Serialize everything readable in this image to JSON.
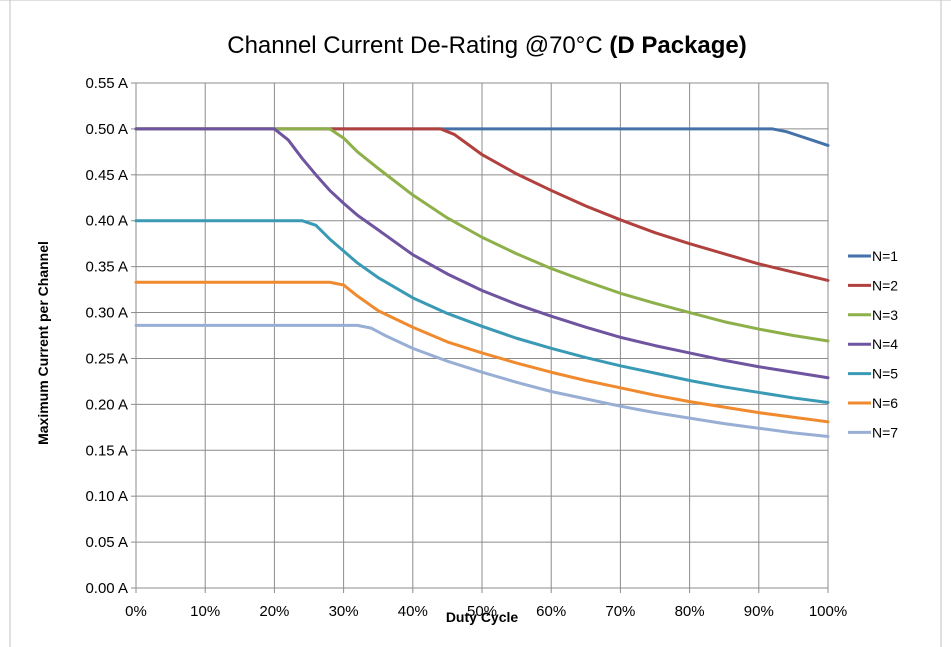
{
  "chart_data": {
    "type": "line",
    "title": "Channel Current De-Rating @70°C",
    "title_bold_suffix": "(D Package)",
    "xlabel": "Duty Cycle",
    "ylabel": "Maximum Current per Channel",
    "xlim": [
      0,
      100
    ],
    "ylim": [
      0,
      0.55
    ],
    "x_ticks": [
      0,
      10,
      20,
      30,
      40,
      50,
      60,
      70,
      80,
      90,
      100
    ],
    "x_tick_labels": [
      "0%",
      "10%",
      "20%",
      "30%",
      "40%",
      "50%",
      "60%",
      "70%",
      "80%",
      "90%",
      "100%"
    ],
    "y_ticks": [
      0,
      0.05,
      0.1,
      0.15,
      0.2,
      0.25,
      0.3,
      0.35,
      0.4,
      0.45,
      0.5,
      0.55
    ],
    "y_tick_labels": [
      "0.00 A",
      "0.05 A",
      "0.10 A",
      "0.15 A",
      "0.20 A",
      "0.25 A",
      "0.30 A",
      "0.35 A",
      "0.40 A",
      "0.45 A",
      "0.50 A",
      "0.55 A"
    ],
    "grid": true,
    "legend_position": "right",
    "series": [
      {
        "name": "N=1",
        "color": "#4472A8",
        "points": [
          [
            0,
            0.5
          ],
          [
            92,
            0.5
          ],
          [
            94,
            0.497
          ],
          [
            96,
            0.492
          ],
          [
            98,
            0.487
          ],
          [
            100,
            0.482
          ]
        ]
      },
      {
        "name": "N=2",
        "color": "#B0413E",
        "points": [
          [
            0,
            0.5
          ],
          [
            44,
            0.5
          ],
          [
            46,
            0.494
          ],
          [
            48,
            0.483
          ],
          [
            50,
            0.472
          ],
          [
            55,
            0.451
          ],
          [
            60,
            0.433
          ],
          [
            65,
            0.416
          ],
          [
            70,
            0.401
          ],
          [
            75,
            0.387
          ],
          [
            80,
            0.375
          ],
          [
            85,
            0.364
          ],
          [
            90,
            0.353
          ],
          [
            95,
            0.344
          ],
          [
            100,
            0.335
          ]
        ]
      },
      {
        "name": "N=3",
        "color": "#8DB04A",
        "points": [
          [
            0,
            0.5
          ],
          [
            28,
            0.5
          ],
          [
            30,
            0.49
          ],
          [
            32,
            0.475
          ],
          [
            35,
            0.457
          ],
          [
            40,
            0.428
          ],
          [
            45,
            0.403
          ],
          [
            50,
            0.382
          ],
          [
            55,
            0.364
          ],
          [
            60,
            0.348
          ],
          [
            65,
            0.334
          ],
          [
            70,
            0.321
          ],
          [
            75,
            0.31
          ],
          [
            80,
            0.3
          ],
          [
            85,
            0.29
          ],
          [
            90,
            0.282
          ],
          [
            95,
            0.275
          ],
          [
            100,
            0.269
          ]
        ]
      },
      {
        "name": "N=4",
        "color": "#6F54A0",
        "points": [
          [
            0,
            0.5
          ],
          [
            20,
            0.5
          ],
          [
            22,
            0.488
          ],
          [
            24,
            0.468
          ],
          [
            26,
            0.45
          ],
          [
            28,
            0.433
          ],
          [
            30,
            0.419
          ],
          [
            32,
            0.406
          ],
          [
            35,
            0.39
          ],
          [
            40,
            0.363
          ],
          [
            45,
            0.342
          ],
          [
            50,
            0.324
          ],
          [
            55,
            0.309
          ],
          [
            60,
            0.296
          ],
          [
            65,
            0.284
          ],
          [
            70,
            0.273
          ],
          [
            75,
            0.264
          ],
          [
            80,
            0.256
          ],
          [
            85,
            0.248
          ],
          [
            90,
            0.241
          ],
          [
            95,
            0.235
          ],
          [
            100,
            0.229
          ]
        ]
      },
      {
        "name": "N=5",
        "color": "#3A9AB5",
        "points": [
          [
            0,
            0.4
          ],
          [
            24,
            0.4
          ],
          [
            26,
            0.395
          ],
          [
            28,
            0.38
          ],
          [
            30,
            0.367
          ],
          [
            32,
            0.354
          ],
          [
            35,
            0.338
          ],
          [
            40,
            0.316
          ],
          [
            45,
            0.299
          ],
          [
            50,
            0.285
          ],
          [
            55,
            0.272
          ],
          [
            60,
            0.261
          ],
          [
            65,
            0.251
          ],
          [
            70,
            0.242
          ],
          [
            75,
            0.234
          ],
          [
            80,
            0.226
          ],
          [
            85,
            0.219
          ],
          [
            90,
            0.213
          ],
          [
            95,
            0.207
          ],
          [
            100,
            0.202
          ]
        ]
      },
      {
        "name": "N=6",
        "color": "#F08A2E",
        "points": [
          [
            0,
            0.333
          ],
          [
            28,
            0.333
          ],
          [
            30,
            0.33
          ],
          [
            32,
            0.318
          ],
          [
            35,
            0.302
          ],
          [
            40,
            0.284
          ],
          [
            45,
            0.268
          ],
          [
            50,
            0.256
          ],
          [
            55,
            0.245
          ],
          [
            60,
            0.235
          ],
          [
            65,
            0.226
          ],
          [
            70,
            0.218
          ],
          [
            75,
            0.21
          ],
          [
            80,
            0.203
          ],
          [
            85,
            0.197
          ],
          [
            90,
            0.191
          ],
          [
            95,
            0.186
          ],
          [
            100,
            0.181
          ]
        ]
      },
      {
        "name": "N=7",
        "color": "#98AED4",
        "points": [
          [
            0,
            0.286
          ],
          [
            32,
            0.286
          ],
          [
            34,
            0.283
          ],
          [
            36,
            0.275
          ],
          [
            40,
            0.261
          ],
          [
            45,
            0.247
          ],
          [
            50,
            0.235
          ],
          [
            55,
            0.224
          ],
          [
            60,
            0.214
          ],
          [
            65,
            0.206
          ],
          [
            70,
            0.198
          ],
          [
            75,
            0.191
          ],
          [
            80,
            0.185
          ],
          [
            85,
            0.179
          ],
          [
            90,
            0.174
          ],
          [
            95,
            0.169
          ],
          [
            100,
            0.165
          ]
        ]
      }
    ]
  }
}
